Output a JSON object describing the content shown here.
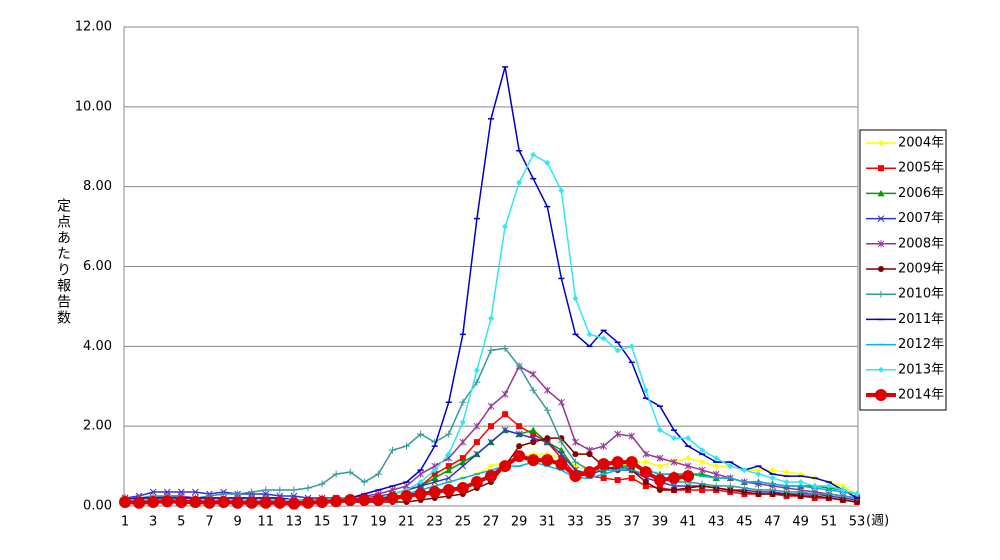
{
  "chart_data": {
    "type": "line",
    "y_label": "定点あたり報告数",
    "x_label": "(週)",
    "categories": [
      "1",
      null,
      "3",
      null,
      "5",
      null,
      "7",
      null,
      "9",
      null,
      "11",
      null,
      "13",
      null,
      "15",
      null,
      "17",
      null,
      "19",
      null,
      "21",
      null,
      "23",
      null,
      "25",
      null,
      "27",
      null,
      "29",
      null,
      "31",
      null,
      "33",
      null,
      "35",
      null,
      "37",
      null,
      "39",
      null,
      "41",
      null,
      "43",
      null,
      "45",
      null,
      "47",
      null,
      "49",
      null,
      "51",
      null,
      "53"
    ],
    "ylim": [
      0,
      12
    ],
    "yticks": [
      {
        "value": 0,
        "label": "0.00"
      },
      {
        "value": 2,
        "label": "2.00"
      },
      {
        "value": 4,
        "label": "4.00"
      },
      {
        "value": 6,
        "label": "6.00"
      },
      {
        "value": 8,
        "label": "8.00"
      },
      {
        "value": 10,
        "label": "10.00"
      },
      {
        "value": 12,
        "label": "12.00"
      }
    ],
    "grid": true,
    "legend": "right",
    "series": [
      {
        "name": "2004年",
        "color": "#ffff00",
        "marker": "diamond",
        "values": [
          0.1,
          0.1,
          0.1,
          0.1,
          0.1,
          0.1,
          0.1,
          0.1,
          0.1,
          0.1,
          0.1,
          0.1,
          0.1,
          0.1,
          0.1,
          0.2,
          0.2,
          0.2,
          0.2,
          0.3,
          0.3,
          0.4,
          0.5,
          0.6,
          0.7,
          0.8,
          1.0,
          1.1,
          1.2,
          1.3,
          1.3,
          1.2,
          1.0,
          0.9,
          0.9,
          1.0,
          1.1,
          1.1,
          1.0,
          1.1,
          1.2,
          1.1,
          1.0,
          1.0,
          0.9,
          0.9,
          0.9,
          0.85,
          0.8,
          0.7,
          0.6,
          0.5,
          0.3
        ]
      },
      {
        "name": "2005年",
        "color": "#ff0000",
        "marker": "square",
        "values": [
          0.1,
          0.1,
          0.1,
          0.1,
          0.1,
          0.1,
          0.1,
          0.1,
          0.1,
          0.1,
          0.1,
          0.1,
          0.1,
          0.1,
          0.1,
          0.2,
          0.2,
          0.2,
          0.2,
          0.3,
          0.4,
          0.5,
          0.8,
          1.0,
          1.2,
          1.6,
          2.0,
          2.3,
          2.0,
          1.8,
          1.6,
          1.2,
          0.8,
          0.75,
          0.7,
          0.65,
          0.7,
          0.5,
          0.45,
          0.4,
          0.4,
          0.4,
          0.4,
          0.35,
          0.3,
          0.3,
          0.3,
          0.25,
          0.25,
          0.2,
          0.2,
          0.15,
          0.1
        ]
      },
      {
        "name": "2006年",
        "color": "#00a000",
        "marker": "triangle",
        "values": [
          0.1,
          0.1,
          0.1,
          0.1,
          0.1,
          0.1,
          0.1,
          0.1,
          0.1,
          0.1,
          0.1,
          0.1,
          0.1,
          0.1,
          0.1,
          0.15,
          0.15,
          0.15,
          0.15,
          0.3,
          0.4,
          0.5,
          0.7,
          0.9,
          1.1,
          1.3,
          1.6,
          1.9,
          1.8,
          1.9,
          1.6,
          1.4,
          0.9,
          0.8,
          0.9,
          1.0,
          1.0,
          0.9,
          0.8,
          0.8,
          0.8,
          0.8,
          0.7,
          0.7,
          0.6,
          0.6,
          0.55,
          0.5,
          0.5,
          0.5,
          0.45,
          0.4,
          0.3
        ]
      },
      {
        "name": "2007年",
        "color": "#3333cc",
        "marker": "x",
        "values": [
          0.2,
          0.25,
          0.35,
          0.35,
          0.35,
          0.35,
          0.3,
          0.35,
          0.3,
          0.3,
          0.3,
          0.25,
          0.25,
          0.2,
          0.2,
          0.2,
          0.2,
          0.2,
          0.25,
          0.3,
          0.4,
          0.5,
          0.6,
          0.7,
          1.0,
          1.3,
          1.6,
          1.9,
          1.8,
          1.7,
          1.6,
          1.3,
          0.9,
          0.8,
          0.9,
          1.0,
          0.9,
          0.7,
          0.6,
          0.5,
          0.5,
          0.5,
          0.45,
          0.4,
          0.4,
          0.35,
          0.35,
          0.3,
          0.3,
          0.3,
          0.25,
          0.2,
          0.15
        ]
      },
      {
        "name": "2008年",
        "color": "#993399",
        "marker": "asterisk",
        "values": [
          0.2,
          0.2,
          0.2,
          0.25,
          0.25,
          0.2,
          0.2,
          0.2,
          0.2,
          0.2,
          0.2,
          0.2,
          0.15,
          0.15,
          0.2,
          0.2,
          0.2,
          0.25,
          0.3,
          0.4,
          0.5,
          0.8,
          1.0,
          1.2,
          1.6,
          2.0,
          2.5,
          2.8,
          3.5,
          3.3,
          2.9,
          2.6,
          1.6,
          1.4,
          1.5,
          1.8,
          1.75,
          1.3,
          1.2,
          1.1,
          1.0,
          0.9,
          0.8,
          0.7,
          0.6,
          0.55,
          0.5,
          0.45,
          0.4,
          0.35,
          0.3,
          0.25,
          0.2
        ]
      },
      {
        "name": "2009年",
        "color": "#800000",
        "marker": "circle",
        "values": [
          0.1,
          0.1,
          0.1,
          0.1,
          0.1,
          0.1,
          0.1,
          0.1,
          0.1,
          0.1,
          0.1,
          0.1,
          0.1,
          0.1,
          0.1,
          0.1,
          0.1,
          0.1,
          0.1,
          0.1,
          0.1,
          0.15,
          0.2,
          0.25,
          0.3,
          0.45,
          0.6,
          1.0,
          1.5,
          1.6,
          1.7,
          1.7,
          1.3,
          1.3,
          1.0,
          0.9,
          0.9,
          0.6,
          0.4,
          0.4,
          0.45,
          0.5,
          0.45,
          0.4,
          0.35,
          0.3,
          0.3,
          0.3,
          0.25,
          0.25,
          0.2,
          0.15,
          0.1
        ]
      },
      {
        "name": "2010年",
        "color": "#339999",
        "marker": "plus",
        "values": [
          0.15,
          0.2,
          0.25,
          0.25,
          0.2,
          0.2,
          0.25,
          0.3,
          0.3,
          0.35,
          0.4,
          0.4,
          0.4,
          0.45,
          0.55,
          0.8,
          0.85,
          0.6,
          0.8,
          1.4,
          1.5,
          1.8,
          1.6,
          1.8,
          2.6,
          3.1,
          3.9,
          3.95,
          3.5,
          2.9,
          2.4,
          1.6,
          1.1,
          0.9,
          0.9,
          0.9,
          0.9,
          0.8,
          0.7,
          0.6,
          0.6,
          0.55,
          0.5,
          0.5,
          0.45,
          0.4,
          0.4,
          0.35,
          0.35,
          0.3,
          0.3,
          0.25,
          0.2
        ]
      },
      {
        "name": "2011年",
        "color": "#0000cc",
        "marker": "dash",
        "values": [
          0.15,
          0.2,
          0.2,
          0.2,
          0.2,
          0.2,
          0.2,
          0.2,
          0.2,
          0.2,
          0.2,
          0.2,
          0.15,
          0.15,
          0.15,
          0.2,
          0.2,
          0.3,
          0.4,
          0.5,
          0.6,
          0.9,
          1.5,
          2.6,
          4.3,
          7.2,
          9.7,
          11.0,
          8.9,
          8.2,
          7.5,
          5.7,
          4.3,
          4.0,
          4.4,
          4.1,
          3.6,
          2.7,
          2.5,
          1.9,
          1.5,
          1.3,
          1.1,
          1.1,
          0.9,
          1.0,
          0.8,
          0.75,
          0.75,
          0.7,
          0.6,
          0.4,
          0.2
        ]
      },
      {
        "name": "2012年",
        "color": "#00b0f0",
        "marker": "dash",
        "values": [
          0.15,
          0.15,
          0.15,
          0.15,
          0.15,
          0.15,
          0.15,
          0.15,
          0.15,
          0.15,
          0.15,
          0.15,
          0.15,
          0.15,
          0.15,
          0.15,
          0.15,
          0.15,
          0.15,
          0.2,
          0.3,
          0.4,
          0.5,
          0.6,
          0.7,
          0.8,
          0.9,
          1.0,
          1.0,
          1.1,
          1.0,
          0.9,
          0.7,
          0.7,
          0.8,
          0.9,
          1.0,
          0.9,
          0.8,
          0.8,
          0.8,
          0.75,
          0.7,
          0.7,
          0.6,
          0.6,
          0.55,
          0.5,
          0.5,
          0.45,
          0.4,
          0.35,
          0.3
        ]
      },
      {
        "name": "2013年",
        "color": "#33e6f0",
        "marker": "diamond",
        "values": [
          0.15,
          0.15,
          0.15,
          0.15,
          0.15,
          0.15,
          0.15,
          0.15,
          0.15,
          0.15,
          0.15,
          0.15,
          0.15,
          0.15,
          0.15,
          0.2,
          0.2,
          0.2,
          0.2,
          0.3,
          0.4,
          0.6,
          0.9,
          1.3,
          2.1,
          3.4,
          4.7,
          7.0,
          8.1,
          8.8,
          8.6,
          7.9,
          5.2,
          4.3,
          4.2,
          3.9,
          4.0,
          2.9,
          1.9,
          1.7,
          1.7,
          1.4,
          1.2,
          1.0,
          0.9,
          0.8,
          0.7,
          0.6,
          0.6,
          0.5,
          0.5,
          0.4,
          0.3
        ]
      },
      {
        "name": "2014年",
        "color": "#e00000",
        "marker": "big-circle",
        "values": [
          0.1,
          0.08,
          0.1,
          0.12,
          0.1,
          0.1,
          0.08,
          0.1,
          0.08,
          0.08,
          0.08,
          0.08,
          0.06,
          0.08,
          0.1,
          0.12,
          0.15,
          0.15,
          0.15,
          0.2,
          0.25,
          0.3,
          0.35,
          0.4,
          0.45,
          0.6,
          0.75,
          1.0,
          1.25,
          1.15,
          1.15,
          1.05,
          0.75,
          0.85,
          1.05,
          1.1,
          1.1,
          0.85,
          0.65,
          0.7,
          0.75,
          null,
          null,
          null,
          null,
          null,
          null,
          null,
          null,
          null,
          null,
          null,
          null
        ]
      }
    ]
  }
}
